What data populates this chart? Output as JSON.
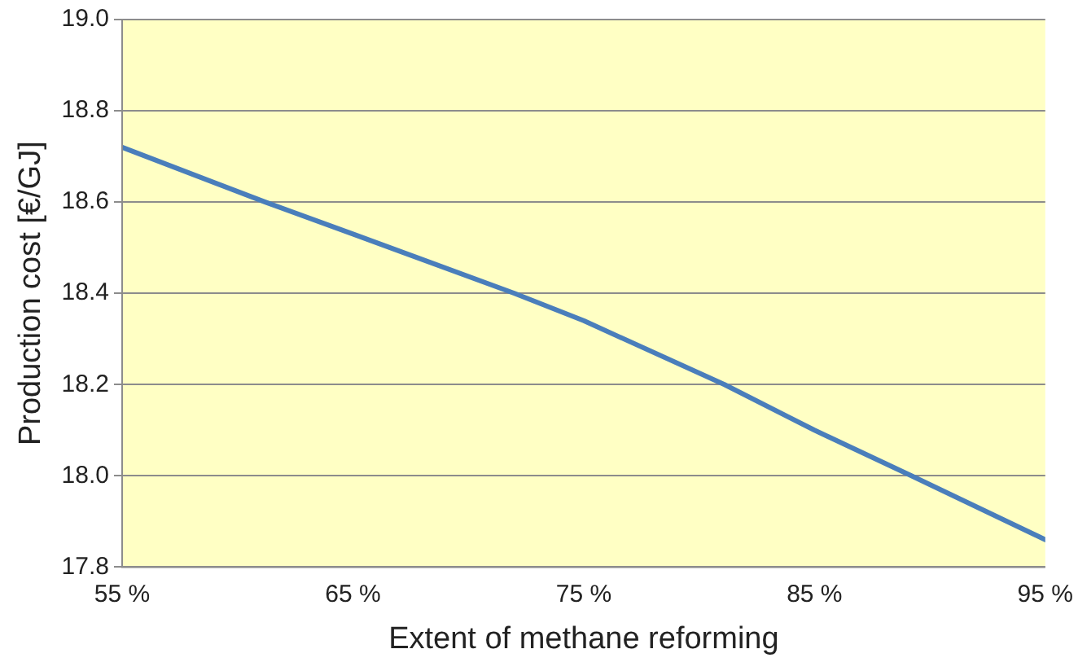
{
  "chart_data": {
    "type": "line",
    "xlabel": "Extent of methane reforming",
    "ylabel": "Production cost [€/GJ]",
    "series": [
      {
        "color": "#4a7ebb",
        "x": [
          55,
          61.2,
          65,
          72,
          75,
          81.1,
          85,
          89.2,
          95
        ],
        "values": [
          18.72,
          18.6,
          18.53,
          18.4,
          18.34,
          18.2,
          18.1,
          18.0,
          17.86
        ]
      }
    ],
    "xlim": [
      55,
      95
    ],
    "xticks": [
      {
        "value": 55,
        "label": "55 %"
      },
      {
        "value": 65,
        "label": "65 %"
      },
      {
        "value": 75,
        "label": "75 %"
      },
      {
        "value": 85,
        "label": "85 %"
      },
      {
        "value": 95,
        "label": "95 %"
      }
    ],
    "ylim": [
      17.8,
      19.0
    ],
    "yticks": [
      {
        "value": 17.8,
        "label": "17.8"
      },
      {
        "value": 18.0,
        "label": "18.0"
      },
      {
        "value": 18.2,
        "label": "18.2"
      },
      {
        "value": 18.4,
        "label": "18.4"
      },
      {
        "value": 18.6,
        "label": "18.6"
      },
      {
        "value": 18.8,
        "label": "18.8"
      },
      {
        "value": 19.0,
        "label": "19.0"
      }
    ],
    "grid": "y",
    "marker": "none",
    "line_style": "solid",
    "legend": false
  }
}
